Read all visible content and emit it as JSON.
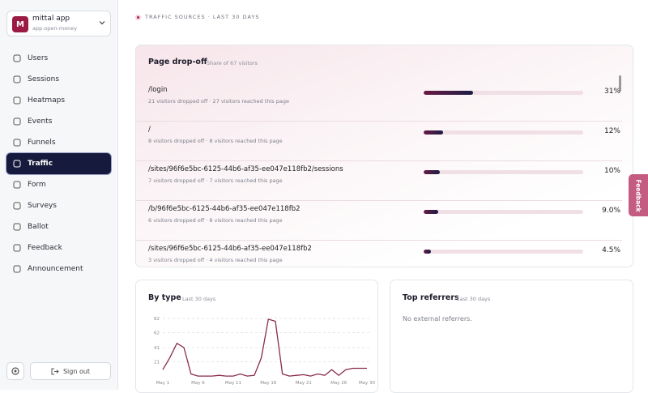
{
  "sidebar": {
    "app": {
      "initial": "M",
      "name": "mittal app",
      "domain": "app.open-money"
    },
    "nav": [
      "Users",
      "Sessions",
      "Heatmaps",
      "Events",
      "Funnels",
      "Traffic",
      "Form",
      "Surveys",
      "Ballot",
      "Feedback",
      "Announcement"
    ],
    "active": "Traffic",
    "sign_out": "Sign out"
  },
  "section_label": "TRAFFIC SOURCES · LAST 30 DAYS",
  "dropoff": {
    "title": "Page drop-off",
    "subtitle": "Share of 67 visitors",
    "rows": [
      {
        "path": "/login",
        "detail": "21 visitors dropped off · 27 visitors reached this page",
        "value": 31,
        "value_label": "31%"
      },
      {
        "path": "/",
        "detail": "8 visitors dropped off · 8 visitors reached this page",
        "value": 12,
        "value_label": "12%"
      },
      {
        "path": "/sites/96f6e5bc-6125-44b6-af35-ee047e118fb2/sessions",
        "detail": "7 visitors dropped off · 7 visitors reached this page",
        "value": 10,
        "value_label": "10%"
      },
      {
        "path": "/b/96f6e5bc-6125-44b6-af35-ee047e118fb2",
        "detail": "6 visitors dropped off · 8 visitors reached this page",
        "value": 9.0,
        "value_label": "9.0%"
      },
      {
        "path": "/sites/96f6e5bc-6125-44b6-af35-ee047e118fb2",
        "detail": "3 visitors dropped off · 4 visitors reached this page",
        "value": 4.5,
        "value_label": "4.5%"
      }
    ]
  },
  "by_type": {
    "title": "By type",
    "subtitle": "Last 30 days",
    "chart_data": {
      "type": "line",
      "color": "#8a2a4c",
      "categories": [
        "May 1",
        null,
        null,
        null,
        null,
        "May 6",
        null,
        null,
        null,
        null,
        "May 11",
        null,
        null,
        null,
        null,
        "May 16",
        null,
        null,
        null,
        null,
        "May 21",
        null,
        null,
        null,
        null,
        "May 26",
        null,
        null,
        null,
        "May 30"
      ],
      "values": [
        10,
        27,
        47,
        41,
        4,
        1,
        1,
        1,
        2,
        1,
        1,
        4,
        1,
        2,
        27,
        81,
        78,
        4,
        1,
        2,
        3,
        1,
        4,
        2,
        10,
        2,
        10,
        12,
        12,
        12
      ],
      "ylim": [
        0,
        82
      ],
      "yticks": [
        21,
        41,
        62,
        82
      ],
      "grid": true
    }
  },
  "referrers": {
    "title": "Top referrers",
    "subtitle": "Last 30 days",
    "empty": "No external referrers."
  },
  "feedback_tab": "Feedback"
}
